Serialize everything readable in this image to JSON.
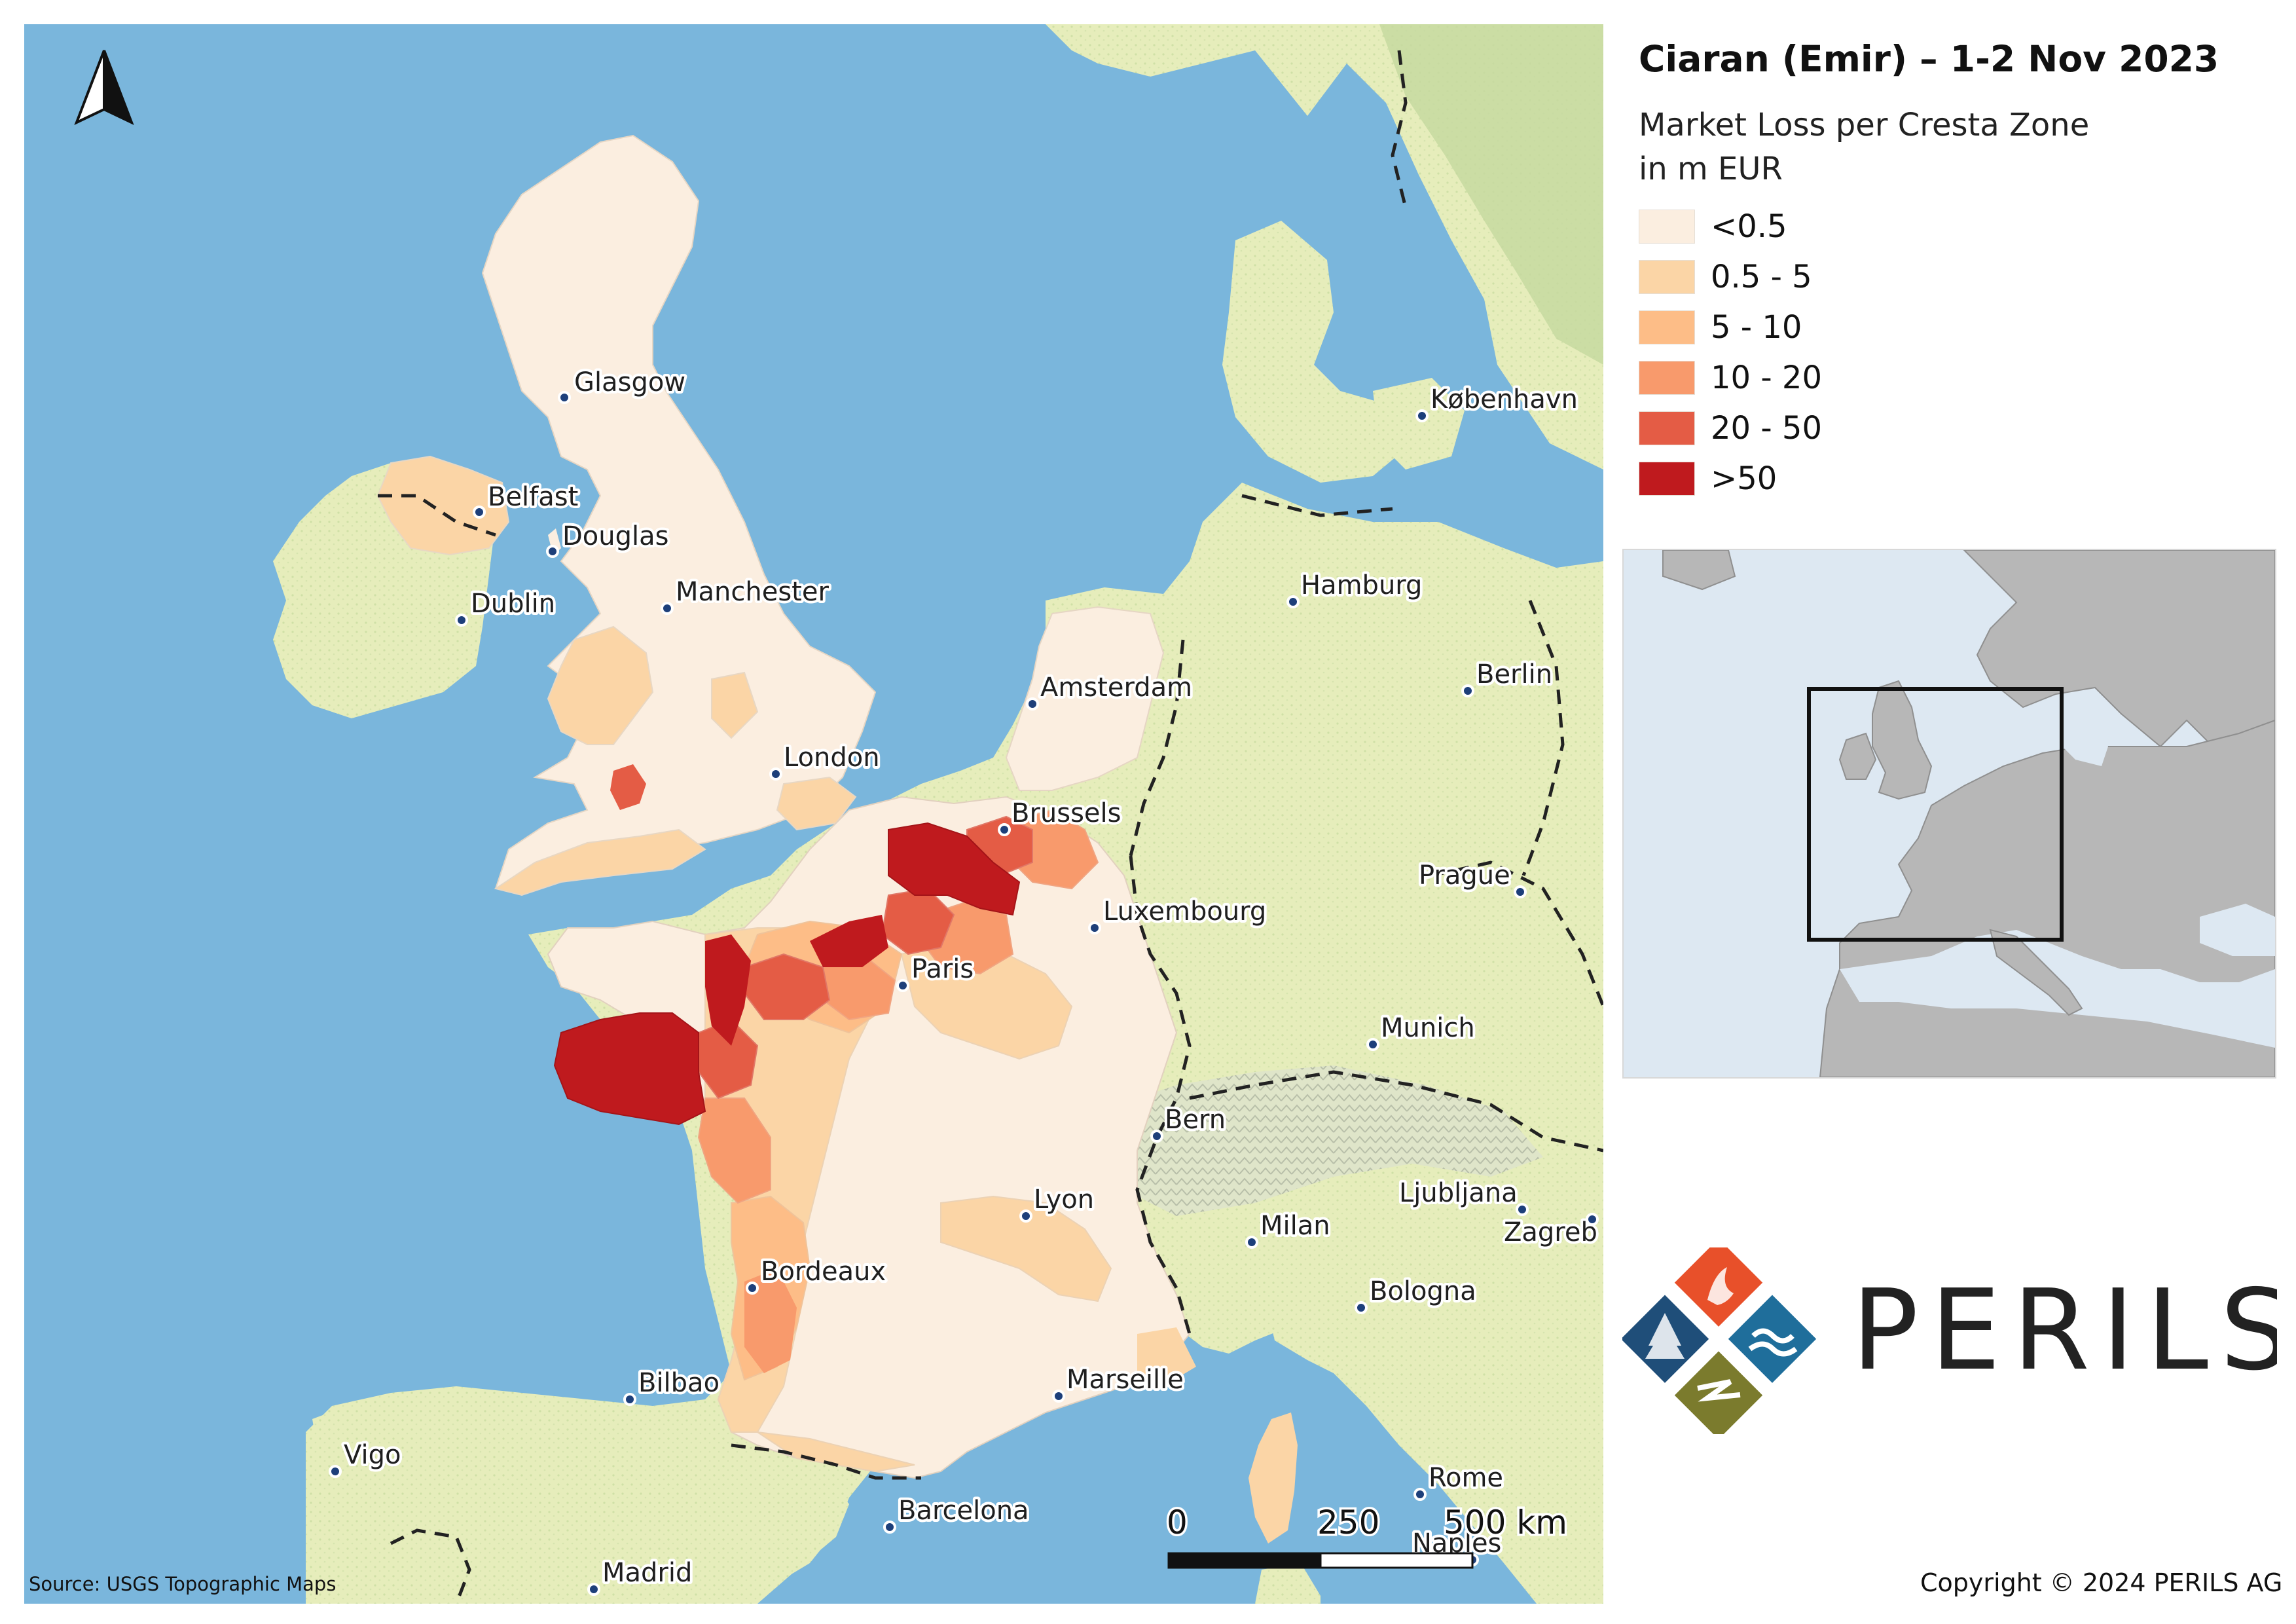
{
  "map": {
    "title": "Ciaran (Emir) – 1-2 Nov 2023",
    "legend_title_line1": "Market Loss per Cresta Zone",
    "legend_title_line2": "in m EUR",
    "legend": [
      {
        "label": "<0.5",
        "color": "#fbeee0"
      },
      {
        "label": "0.5 - 5",
        "color": "#fbd5a6"
      },
      {
        "label": "5 - 10",
        "color": "#fdbd87"
      },
      {
        "label": "10 - 20",
        "color": "#f89a6c"
      },
      {
        "label": "20 - 50",
        "color": "#e45c45"
      },
      {
        "label": ">50",
        "color": "#bf1a1e"
      }
    ],
    "source": "Source: USGS Topographic Maps",
    "copyright": "Copyright © 2024 PERILS AG",
    "brand": "PERILS",
    "scale_bar": {
      "labels": [
        "0",
        "250",
        "500 km"
      ]
    },
    "north_arrow": "north-arrow-icon",
    "colors": {
      "sea": "#7ab6dc",
      "land": "#e9eebd",
      "land_green": "#c8dba0",
      "border": "#222222",
      "inset_sea": "#dde8f2",
      "inset_land": "#b7b7b7"
    },
    "cities": [
      {
        "name": "Glasgow"
      },
      {
        "name": "Belfast"
      },
      {
        "name": "Douglas"
      },
      {
        "name": "Dublin"
      },
      {
        "name": "Manchester"
      },
      {
        "name": "London"
      },
      {
        "name": "København"
      },
      {
        "name": "Hamburg"
      },
      {
        "name": "Amsterdam"
      },
      {
        "name": "Berlin"
      },
      {
        "name": "Brussels"
      },
      {
        "name": "Luxembourg"
      },
      {
        "name": "Prague"
      },
      {
        "name": "Paris"
      },
      {
        "name": "Munich"
      },
      {
        "name": "Bern"
      },
      {
        "name": "Lyon"
      },
      {
        "name": "Ljubljana"
      },
      {
        "name": "Milan"
      },
      {
        "name": "Zagreb"
      },
      {
        "name": "Bordeaux"
      },
      {
        "name": "Bologna"
      },
      {
        "name": "Bilbao"
      },
      {
        "name": "Marseille"
      },
      {
        "name": "Vigo"
      },
      {
        "name": "Rome"
      },
      {
        "name": "Barcelona"
      },
      {
        "name": "Naples"
      },
      {
        "name": "Madrid"
      }
    ]
  }
}
